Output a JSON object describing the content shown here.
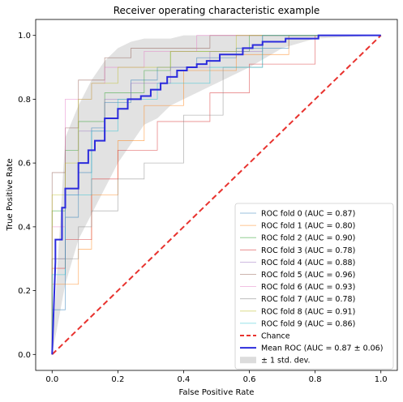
{
  "chart_data": {
    "type": "line",
    "title": "Receiver operating characteristic example",
    "xlabel": "False Positive Rate",
    "ylabel": "True Positive Rate",
    "xlim": [
      -0.05,
      1.05
    ],
    "ylim": [
      -0.05,
      1.05
    ],
    "xticks": [
      0.0,
      0.2,
      0.4,
      0.6,
      0.8,
      1.0
    ],
    "yticks": [
      0.0,
      0.2,
      0.4,
      0.6,
      0.8,
      1.0
    ],
    "xtick_labels": [
      "0.0",
      "0.2",
      "0.4",
      "0.6",
      "0.8",
      "1.0"
    ],
    "ytick_labels": [
      "0.0",
      "0.2",
      "0.4",
      "0.6",
      "0.8",
      "1.0"
    ],
    "grid": false,
    "legend_position": "lower-right",
    "folds": [
      {
        "name": "ROC fold 0 (AUC = 0.87)",
        "color": "#1f77b4",
        "x": [
          0,
          0,
          0.04,
          0.04,
          0.08,
          0.08,
          0.12,
          0.12,
          0.16,
          0.16,
          0.24,
          0.24,
          0.32,
          0.32,
          0.44,
          0.44,
          0.56,
          0.56,
          0.72,
          0.72,
          1.0
        ],
        "y": [
          0,
          0.14,
          0.14,
          0.43,
          0.43,
          0.57,
          0.57,
          0.71,
          0.71,
          0.79,
          0.79,
          0.86,
          0.86,
          0.9,
          0.9,
          0.93,
          0.93,
          0.96,
          0.96,
          1.0,
          1.0
        ]
      },
      {
        "name": "ROC fold 1 (AUC = 0.80)",
        "color": "#ff7f0e",
        "x": [
          0,
          0,
          0.08,
          0.08,
          0.12,
          0.12,
          0.2,
          0.2,
          0.28,
          0.28,
          0.4,
          0.4,
          0.56,
          0.56,
          0.72,
          0.72,
          1.0
        ],
        "y": [
          0,
          0.22,
          0.22,
          0.33,
          0.33,
          0.5,
          0.5,
          0.67,
          0.67,
          0.78,
          0.78,
          0.89,
          0.89,
          0.94,
          0.94,
          1.0,
          1.0
        ]
      },
      {
        "name": "ROC fold 2 (AUC = 0.90)",
        "color": "#2ca02c",
        "x": [
          0,
          0,
          0.04,
          0.04,
          0.08,
          0.08,
          0.16,
          0.16,
          0.28,
          0.28,
          0.36,
          0.36,
          0.6,
          0.6,
          1.0
        ],
        "y": [
          0,
          0.45,
          0.45,
          0.64,
          0.64,
          0.73,
          0.73,
          0.82,
          0.82,
          0.89,
          0.89,
          0.95,
          0.95,
          1.0,
          1.0
        ]
      },
      {
        "name": "ROC fold 3 (AUC = 0.78)",
        "color": "#d62728",
        "x": [
          0,
          0,
          0.04,
          0.04,
          0.12,
          0.12,
          0.2,
          0.2,
          0.32,
          0.32,
          0.48,
          0.48,
          0.6,
          0.6,
          0.8,
          0.8,
          1.0
        ],
        "y": [
          0,
          0.27,
          0.27,
          0.36,
          0.36,
          0.55,
          0.55,
          0.64,
          0.64,
          0.73,
          0.73,
          0.82,
          0.82,
          0.91,
          0.91,
          1.0,
          1.0
        ]
      },
      {
        "name": "ROC fold 4 (AUC = 0.88)",
        "color": "#9467bd",
        "x": [
          0,
          0,
          0.04,
          0.04,
          0.08,
          0.08,
          0.16,
          0.16,
          0.24,
          0.24,
          0.36,
          0.36,
          0.48,
          0.48,
          0.64,
          0.64,
          1.0
        ],
        "y": [
          0,
          0.3,
          0.3,
          0.5,
          0.5,
          0.7,
          0.7,
          0.8,
          0.8,
          0.85,
          0.85,
          0.9,
          0.9,
          0.95,
          0.95,
          1.0,
          1.0
        ]
      },
      {
        "name": "ROC fold 5 (AUC = 0.96)",
        "color": "#8c564b",
        "x": [
          0,
          0,
          0.04,
          0.04,
          0.08,
          0.08,
          0.16,
          0.16,
          0.24,
          0.24,
          0.48,
          0.48,
          1.0
        ],
        "y": [
          0,
          0.57,
          0.57,
          0.71,
          0.71,
          0.86,
          0.86,
          0.93,
          0.93,
          0.96,
          0.96,
          1.0,
          1.0
        ]
      },
      {
        "name": "ROC fold 6 (AUC = 0.93)",
        "color": "#e377c2",
        "x": [
          0,
          0,
          0.04,
          0.04,
          0.12,
          0.12,
          0.16,
          0.16,
          0.28,
          0.28,
          0.44,
          0.44,
          1.0
        ],
        "y": [
          0,
          0.4,
          0.4,
          0.8,
          0.8,
          0.85,
          0.85,
          0.9,
          0.9,
          0.95,
          0.95,
          1.0,
          1.0
        ]
      },
      {
        "name": "ROC fold 7 (AUC = 0.78)",
        "color": "#7f7f7f",
        "x": [
          0,
          0,
          0.08,
          0.08,
          0.12,
          0.12,
          0.2,
          0.2,
          0.28,
          0.28,
          0.4,
          0.4,
          0.52,
          0.52,
          0.64,
          0.64,
          1.0
        ],
        "y": [
          0,
          0.3,
          0.3,
          0.4,
          0.4,
          0.45,
          0.45,
          0.55,
          0.55,
          0.6,
          0.6,
          0.75,
          0.75,
          0.9,
          0.9,
          1.0,
          1.0
        ]
      },
      {
        "name": "ROC fold 8 (AUC = 0.91)",
        "color": "#bcbd22",
        "x": [
          0,
          0,
          0.04,
          0.04,
          0.08,
          0.08,
          0.12,
          0.12,
          0.2,
          0.2,
          0.36,
          0.36,
          0.56,
          0.56,
          1.0
        ],
        "y": [
          0,
          0.5,
          0.5,
          0.6,
          0.6,
          0.8,
          0.8,
          0.85,
          0.85,
          0.9,
          0.9,
          0.95,
          0.95,
          1.0,
          1.0
        ]
      },
      {
        "name": "ROC fold 9 (AUC = 0.86)",
        "color": "#17becf",
        "x": [
          0,
          0,
          0.04,
          0.04,
          0.12,
          0.12,
          0.2,
          0.2,
          0.32,
          0.32,
          0.48,
          0.48,
          0.64,
          0.64,
          1.0
        ],
        "y": [
          0,
          0.25,
          0.25,
          0.5,
          0.5,
          0.7,
          0.7,
          0.8,
          0.8,
          0.85,
          0.85,
          0.9,
          0.9,
          1.0,
          1.0
        ]
      }
    ],
    "chance": {
      "name": "Chance",
      "color": "#e8322e",
      "x": [
        0,
        1
      ],
      "y": [
        0,
        1
      ]
    },
    "mean_roc": {
      "name": "Mean ROC (AUC = 0.87 ± 0.06)",
      "color": "#2b2bdc",
      "x": [
        0,
        0.01,
        0.01,
        0.03,
        0.03,
        0.04,
        0.04,
        0.08,
        0.08,
        0.11,
        0.11,
        0.13,
        0.13,
        0.16,
        0.16,
        0.2,
        0.2,
        0.23,
        0.23,
        0.27,
        0.27,
        0.3,
        0.3,
        0.33,
        0.33,
        0.35,
        0.35,
        0.38,
        0.38,
        0.41,
        0.41,
        0.44,
        0.44,
        0.47,
        0.47,
        0.51,
        0.51,
        0.58,
        0.58,
        0.61,
        0.61,
        0.64,
        0.64,
        0.71,
        0.71,
        0.75,
        0.75,
        0.81,
        0.81,
        1.0
      ],
      "y": [
        0,
        0.29,
        0.36,
        0.36,
        0.46,
        0.46,
        0.52,
        0.52,
        0.6,
        0.6,
        0.64,
        0.64,
        0.67,
        0.67,
        0.74,
        0.74,
        0.77,
        0.77,
        0.8,
        0.8,
        0.81,
        0.81,
        0.83,
        0.83,
        0.85,
        0.85,
        0.87,
        0.87,
        0.89,
        0.89,
        0.9,
        0.9,
        0.91,
        0.91,
        0.92,
        0.92,
        0.94,
        0.94,
        0.96,
        0.96,
        0.97,
        0.97,
        0.98,
        0.98,
        0.99,
        0.99,
        0.99,
        0.99,
        1.0,
        1.0
      ]
    },
    "std_band": {
      "name": "± 1 std. dev.",
      "color": "#bfbfbf",
      "x": [
        0,
        0.04,
        0.08,
        0.12,
        0.16,
        0.2,
        0.24,
        0.28,
        0.32,
        0.36,
        0.4,
        0.44,
        0.48,
        0.52,
        0.56,
        0.6,
        0.7,
        0.8,
        1.0
      ],
      "upper": [
        0,
        0.68,
        0.78,
        0.86,
        0.92,
        0.96,
        0.98,
        0.99,
        0.99,
        0.99,
        1.0,
        1.0,
        1.0,
        1.0,
        1.0,
        1.0,
        1.0,
        1.0,
        1.0
      ],
      "lower": [
        0,
        0.22,
        0.36,
        0.44,
        0.52,
        0.6,
        0.66,
        0.72,
        0.74,
        0.78,
        0.8,
        0.82,
        0.84,
        0.86,
        0.88,
        0.9,
        0.96,
        0.99,
        1.0
      ]
    }
  }
}
